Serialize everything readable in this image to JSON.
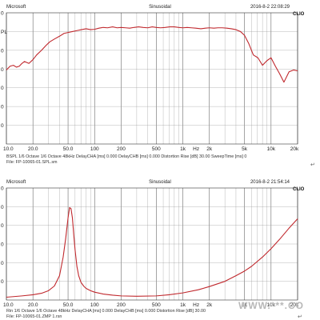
{
  "chart_data": [
    {
      "type": "line",
      "header_left": "Microsoft",
      "header_center": "Sinusoidal",
      "header_right": "2016-8-2 22:08:29",
      "logo": "CLIO",
      "y_tick_labels": [
        "0",
        "PL",
        "0",
        "0",
        "0",
        "0",
        "0"
      ],
      "x_scale": "log",
      "xlim": [
        10,
        20000
      ],
      "x_ticks": [
        {
          "label": "10.0",
          "value": 10
        },
        {
          "label": "20.0",
          "value": 20
        },
        {
          "label": "50.0",
          "value": 50
        },
        {
          "label": "100",
          "value": 100
        },
        {
          "label": "200",
          "value": 200
        },
        {
          "label": "500",
          "value": 500
        },
        {
          "label": "1k",
          "value": 1000
        },
        {
          "label": "Hz",
          "value": 1414
        },
        {
          "label": "2k",
          "value": 2000
        },
        {
          "label": "5k",
          "value": 5000
        },
        {
          "label": "10k",
          "value": 10000
        },
        {
          "label": "20k",
          "value": 20000
        }
      ],
      "ylim": [
        0,
        7
      ],
      "grid": true,
      "settings_line": "BSPL   1/6 Octave   1/6 Octave   48kHz   DelayCHA [ms] 0.000   DelayCHB [ms] 0.000   Distortion Rise [dB] 30.00   SweepTime [ms] 0",
      "file_line": "File: FP-10065-01.SPL.sm",
      "curve_color": "#c0282d",
      "series": [
        {
          "x": [
            10,
            11,
            12,
            13,
            14,
            15,
            16,
            18,
            20,
            22,
            25,
            28,
            31,
            35,
            40,
            45,
            50,
            56,
            63,
            71,
            80,
            90,
            100,
            112,
            125,
            140,
            160,
            180,
            200,
            225,
            250,
            280,
            315,
            355,
            400,
            450,
            500,
            560,
            630,
            710,
            800,
            900,
            1000,
            1120,
            1250,
            1400,
            1600,
            1800,
            2000,
            2250,
            2500,
            2800,
            3150,
            3550,
            4000,
            4500,
            5000,
            5600,
            6300,
            7100,
            8000,
            9000,
            10000,
            11200,
            12500,
            14000,
            16000,
            18000,
            20000
          ],
          "y": [
            3.95,
            4.15,
            4.2,
            4.1,
            4.15,
            4.3,
            4.4,
            4.3,
            4.5,
            4.75,
            5.0,
            5.25,
            5.45,
            5.6,
            5.75,
            5.9,
            5.95,
            6.0,
            6.05,
            6.1,
            6.15,
            6.1,
            6.12,
            6.18,
            6.22,
            6.2,
            6.25,
            6.2,
            6.22,
            6.2,
            6.18,
            6.22,
            6.25,
            6.22,
            6.2,
            6.25,
            6.22,
            6.2,
            6.22,
            6.25,
            6.25,
            6.22,
            6.2,
            6.22,
            6.2,
            6.18,
            6.15,
            6.18,
            6.2,
            6.18,
            6.2,
            6.2,
            6.18,
            6.15,
            6.1,
            6.0,
            5.8,
            5.35,
            4.75,
            4.6,
            4.2,
            4.45,
            4.6,
            4.15,
            3.75,
            3.3,
            3.85,
            3.95,
            3.9
          ]
        }
      ]
    },
    {
      "type": "line",
      "header_left": "Microsoft",
      "header_center": "Sinusoidal",
      "header_right": "2016-8-2 21:54:14",
      "logo": "CLIO",
      "y_tick_labels": [
        "0",
        "0",
        "0",
        "0",
        "0",
        "0"
      ],
      "x_scale": "log",
      "xlim": [
        10,
        20000
      ],
      "x_ticks": [
        {
          "label": "10.0",
          "value": 10
        },
        {
          "label": "20.0",
          "value": 20
        },
        {
          "label": "50.0",
          "value": 50
        },
        {
          "label": "100",
          "value": 100
        },
        {
          "label": "200",
          "value": 200
        },
        {
          "label": "500",
          "value": 500
        },
        {
          "label": "1k",
          "value": 1000
        },
        {
          "label": "Hz",
          "value": 1414
        },
        {
          "label": "2k",
          "value": 2000
        },
        {
          "label": "5k",
          "value": 5000
        },
        {
          "label": "10k",
          "value": 10000
        },
        {
          "label": "20k",
          "value": 20000
        }
      ],
      "ylim": [
        0,
        6
      ],
      "grid": true,
      "settings_line": "Rin   1/6 Octave   1/6 Octave   48kHz   DelayCHA [ms] 0.000   DelayCHB [ms] 0.000   Distortion Rise [dB] 30.00",
      "file_line": "File: FP-10065-01.ZMP 1.rsn",
      "curve_color": "#c0282d",
      "series": [
        {
          "x": [
            10,
            15,
            20,
            25,
            30,
            35,
            40,
            44,
            47,
            50,
            52,
            54,
            56,
            58,
            60,
            63,
            66,
            70,
            75,
            80,
            90,
            100,
            125,
            160,
            200,
            300,
            500,
            700,
            1000,
            1500,
            2000,
            3000,
            4000,
            5000,
            6000,
            8000,
            10000,
            12500,
            16000,
            20000
          ],
          "y": [
            0.15,
            0.22,
            0.28,
            0.36,
            0.5,
            0.75,
            1.3,
            2.3,
            3.3,
            4.4,
            4.95,
            4.9,
            4.4,
            3.5,
            2.7,
            1.8,
            1.3,
            0.95,
            0.75,
            0.62,
            0.5,
            0.42,
            0.32,
            0.26,
            0.22,
            0.2,
            0.22,
            0.28,
            0.38,
            0.55,
            0.72,
            1.0,
            1.3,
            1.55,
            1.8,
            2.3,
            2.75,
            3.25,
            3.85,
            4.35
          ]
        }
      ]
    }
  ],
  "paragraph_mark": "↵",
  "watermark": "WWW.***.CO"
}
